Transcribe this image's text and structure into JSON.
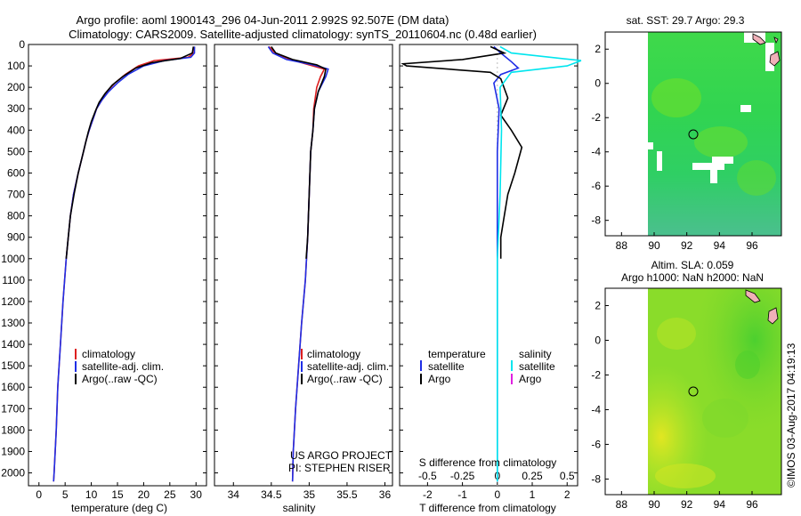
{
  "title": {
    "line1": "Argo profile: aoml 1900143_296 04-Jun-2011 2.992S 92.507E (DM data)",
    "line2": "Climatology: CARS2009. Satellite-adjusted climatology: synTS_20110604.nc (0.48d earlier)"
  },
  "colors": {
    "climatology": "#dd1f1f",
    "satellite": "#1f2ee6",
    "argo": "#000000",
    "sat_salinity": "#00e5ee",
    "argo_salinity": "#e020e0"
  },
  "chart_data": [
    {
      "type": "line",
      "name": "temperature",
      "xlabel": "temperature (deg C)",
      "ylabel": "",
      "xlim": [
        -2,
        32
      ],
      "ylim": [
        2060,
        0
      ],
      "xticks": [
        0,
        5,
        10,
        15,
        20,
        25,
        30
      ],
      "yticks": [
        0,
        100,
        200,
        300,
        400,
        500,
        600,
        700,
        800,
        900,
        1000,
        1100,
        1200,
        1300,
        1400,
        1500,
        1600,
        1700,
        1800,
        1900,
        2000
      ],
      "legend": [
        "climatology",
        "satellite-adj. clim.",
        "Argo(..raw -QC)"
      ],
      "series": [
        {
          "name": "climatology",
          "points": [
            [
              29.7,
              10
            ],
            [
              29.6,
              40
            ],
            [
              28.5,
              60
            ],
            [
              22,
              75
            ],
            [
              19,
              100
            ],
            [
              16.5,
              140
            ],
            [
              14.5,
              180
            ],
            [
              13,
              220
            ],
            [
              12,
              260
            ],
            [
              11,
              300
            ],
            [
              10.3,
              350
            ],
            [
              9.6,
              400
            ],
            [
              9,
              450
            ],
            [
              8.5,
              500
            ],
            [
              7.5,
              600
            ],
            [
              6.6,
              700
            ],
            [
              6,
              800
            ],
            [
              5.6,
              900
            ],
            [
              5.2,
              1000
            ],
            [
              4.6,
              1200
            ],
            [
              4.1,
              1400
            ],
            [
              3.6,
              1600
            ],
            [
              3.3,
              1800
            ],
            [
              2.9,
              2000
            ],
            [
              2.8,
              2040
            ]
          ]
        },
        {
          "name": "satellite",
          "points": [
            [
              29.7,
              10
            ],
            [
              29.7,
              40
            ],
            [
              29,
              60
            ],
            [
              24,
              75
            ],
            [
              20,
              100
            ],
            [
              17,
              140
            ],
            [
              15,
              180
            ],
            [
              13.3,
              220
            ],
            [
              12,
              260
            ],
            [
              11,
              300
            ],
            [
              10.3,
              350
            ],
            [
              9.6,
              400
            ],
            [
              9,
              450
            ],
            [
              8.5,
              500
            ],
            [
              7.5,
              600
            ],
            [
              6.6,
              700
            ],
            [
              6,
              800
            ],
            [
              5.6,
              900
            ],
            [
              5.2,
              1000
            ],
            [
              4.6,
              1200
            ],
            [
              4.1,
              1400
            ],
            [
              3.6,
              1600
            ],
            [
              3.3,
              1800
            ],
            [
              2.9,
              2000
            ],
            [
              2.8,
              2040
            ]
          ]
        },
        {
          "name": "argo",
          "points": [
            [
              29.5,
              10
            ],
            [
              29.3,
              40
            ],
            [
              27,
              65
            ],
            [
              21.5,
              85
            ],
            [
              18.5,
              110
            ],
            [
              16,
              150
            ],
            [
              14,
              190
            ],
            [
              12.6,
              230
            ],
            [
              11.5,
              270
            ],
            [
              10.8,
              310
            ],
            [
              10,
              360
            ],
            [
              9.4,
              410
            ],
            [
              8.9,
              460
            ],
            [
              8.5,
              500
            ],
            [
              7.5,
              600
            ],
            [
              6.7,
              700
            ],
            [
              6,
              800
            ],
            [
              5.6,
              900
            ],
            [
              5.2,
              1000
            ]
          ]
        }
      ]
    },
    {
      "type": "line",
      "name": "salinity",
      "xlabel": "salinity",
      "xlim": [
        33.75,
        36.1
      ],
      "ylim": [
        2060,
        0
      ],
      "xticks": [
        34,
        34.5,
        35,
        35.5,
        36
      ],
      "legend": [
        "climatology",
        "satellite-adj. clim.",
        "Argo(..raw -QC)"
      ],
      "annotation": [
        "US ARGO PROJECT",
        "PI: STEPHEN RISER"
      ],
      "series": [
        {
          "name": "climatology",
          "points": [
            [
              34.47,
              10
            ],
            [
              34.55,
              40
            ],
            [
              34.75,
              70
            ],
            [
              35.05,
              100
            ],
            [
              35.2,
              115
            ],
            [
              35.15,
              150
            ],
            [
              35.1,
              200
            ],
            [
              35.06,
              300
            ],
            [
              35.05,
              400
            ],
            [
              35.02,
              500
            ],
            [
              35.0,
              700
            ],
            [
              34.98,
              900
            ],
            [
              34.95,
              1100
            ],
            [
              34.9,
              1300
            ],
            [
              34.86,
              1500
            ],
            [
              34.82,
              1700
            ],
            [
              34.79,
              1900
            ],
            [
              34.78,
              2040
            ]
          ]
        },
        {
          "name": "satellite",
          "points": [
            [
              34.46,
              10
            ],
            [
              34.52,
              40
            ],
            [
              34.7,
              70
            ],
            [
              35.05,
              95
            ],
            [
              35.25,
              115
            ],
            [
              35.22,
              150
            ],
            [
              35.12,
              220
            ],
            [
              35.07,
              300
            ],
            [
              35.05,
              400
            ],
            [
              35.02,
              500
            ],
            [
              35.0,
              700
            ],
            [
              34.98,
              900
            ],
            [
              34.95,
              1100
            ],
            [
              34.9,
              1300
            ],
            [
              34.86,
              1500
            ],
            [
              34.82,
              1700
            ],
            [
              34.79,
              1900
            ],
            [
              34.78,
              2040
            ]
          ]
        },
        {
          "name": "argo",
          "points": [
            [
              34.5,
              10
            ],
            [
              34.56,
              40
            ],
            [
              34.78,
              70
            ],
            [
              35.1,
              95
            ],
            [
              35.22,
              115
            ],
            [
              35.2,
              150
            ],
            [
              35.12,
              220
            ],
            [
              35.07,
              300
            ],
            [
              35.05,
              400
            ],
            [
              35.02,
              500
            ],
            [
              35.0,
              700
            ],
            [
              34.98,
              900
            ],
            [
              34.96,
              1000
            ]
          ]
        }
      ]
    },
    {
      "type": "line",
      "name": "difference",
      "xlabel": "T difference from climatology",
      "x2label": "S difference from climatology",
      "xlim": [
        -2.8,
        2.3
      ],
      "ylim": [
        2060,
        0
      ],
      "xticks": [
        -2,
        -1,
        0,
        1,
        2
      ],
      "x2ticks": [
        "-0.5",
        "-0.25",
        "0",
        "0.25",
        "0.5"
      ],
      "legend": {
        "temperature_header": "temperature",
        "salinity_header": "salinity",
        "items": [
          "satellite",
          "Argo",
          "satellite",
          "Argo"
        ]
      },
      "series": [
        {
          "name": "T satellite",
          "points": [
            [
              -0.1,
              10
            ],
            [
              0.1,
              40
            ],
            [
              0.4,
              80
            ],
            [
              0.6,
              110
            ],
            [
              0.1,
              140
            ],
            [
              -0.1,
              180
            ],
            [
              0.05,
              300
            ],
            [
              0,
              500
            ],
            [
              0,
              800
            ],
            [
              0,
              1200
            ],
            [
              0,
              1600
            ],
            [
              0,
              2040
            ]
          ]
        },
        {
          "name": "T Argo",
          "points": [
            [
              -0.2,
              10
            ],
            [
              0.2,
              40
            ],
            [
              -1,
              70
            ],
            [
              -2.7,
              90
            ],
            [
              -2.6,
              100
            ],
            [
              -0.2,
              130
            ],
            [
              0.1,
              160
            ],
            [
              0.3,
              250
            ],
            [
              0.1,
              330
            ],
            [
              0.4,
              400
            ],
            [
              0.7,
              480
            ],
            [
              0.5,
              600
            ],
            [
              0.3,
              700
            ],
            [
              0.2,
              800
            ],
            [
              0.1,
              900
            ],
            [
              0.1,
              1000
            ]
          ]
        },
        {
          "name": "S satellite",
          "points": [
            [
              0.02,
              10
            ],
            [
              0.1,
              40
            ],
            [
              0.6,
              75
            ],
            [
              0.5,
              100
            ],
            [
              0.1,
              130
            ],
            [
              0.02,
              200
            ],
            [
              0.03,
              400
            ],
            [
              0.02,
              700
            ],
            [
              0,
              1000
            ],
            [
              0,
              1400
            ],
            [
              0,
              1800
            ],
            [
              0,
              2040
            ]
          ]
        },
        {
          "name": "S Argo",
          "points": []
        }
      ]
    },
    {
      "type": "heatmap",
      "name": "sst-map",
      "title": "sat. SST: 29.7 Argo: 29.3",
      "xlim": [
        87,
        97.8
      ],
      "ylim": [
        -8.9,
        3.0
      ],
      "xticks": [
        88,
        90,
        92,
        94,
        96
      ],
      "yticks": [
        2,
        0,
        -2,
        -4,
        -6,
        -8
      ],
      "marker": [
        92.6,
        -3.0
      ]
    },
    {
      "type": "heatmap",
      "name": "sla-map",
      "title": [
        "Altim. SLA: 0.059",
        "Argo h1000: NaN h2000: NaN"
      ],
      "xlim": [
        87,
        97.8
      ],
      "ylim": [
        -8.9,
        3.0
      ],
      "xticks": [
        88,
        90,
        92,
        94,
        96
      ],
      "yticks": [
        2,
        0,
        -2,
        -4,
        -6,
        -8
      ],
      "marker": [
        92.6,
        -3.0
      ]
    }
  ],
  "credit": "©IMOS 03-Aug-2017 04:19:13"
}
